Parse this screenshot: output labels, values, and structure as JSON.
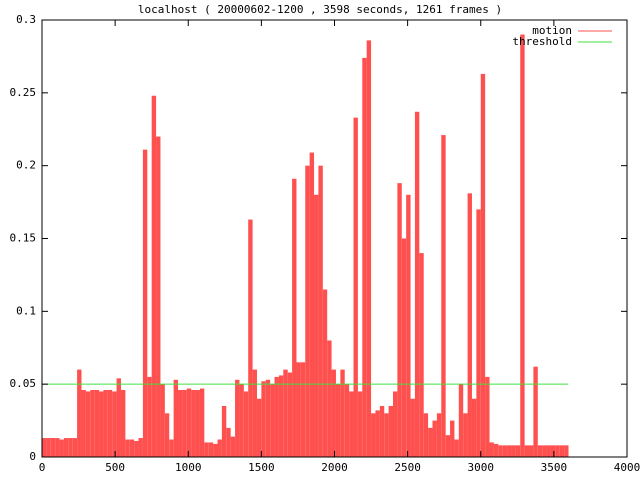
{
  "chart_data": {
    "type": "impulse",
    "title": "localhost ( 20000602-1200 , 3598 seconds, 1261 frames )",
    "xlim": [
      0,
      4000
    ],
    "ylim": [
      0,
      0.3
    ],
    "xticks": [
      0,
      500,
      1000,
      1500,
      2000,
      2500,
      3000,
      3500,
      4000
    ],
    "yticks": [
      0,
      0.05,
      0.1,
      0.15,
      0.2,
      0.25,
      0.3
    ],
    "legend": "top-right",
    "series": [
      {
        "name": "motion",
        "color": "#ff5050",
        "style": "impulses",
        "x": [
          0,
          30,
          60,
          90,
          120,
          150,
          180,
          210,
          240,
          270,
          300,
          330,
          360,
          390,
          420,
          450,
          480,
          510,
          540,
          570,
          600,
          630,
          660,
          690,
          720,
          750,
          780,
          810,
          840,
          870,
          900,
          930,
          960,
          990,
          1020,
          1050,
          1080,
          1110,
          1140,
          1170,
          1200,
          1230,
          1260,
          1290,
          1320,
          1350,
          1380,
          1410,
          1440,
          1470,
          1500,
          1530,
          1560,
          1590,
          1620,
          1650,
          1680,
          1710,
          1740,
          1770,
          1800,
          1830,
          1860,
          1890,
          1920,
          1950,
          1980,
          2010,
          2040,
          2070,
          2100,
          2130,
          2160,
          2190,
          2220,
          2250,
          2280,
          2310,
          2340,
          2370,
          2400,
          2430,
          2460,
          2490,
          2520,
          2550,
          2580,
          2610,
          2640,
          2670,
          2700,
          2730,
          2760,
          2790,
          2820,
          2850,
          2880,
          2910,
          2940,
          2970,
          3000,
          3030,
          3060,
          3090,
          3120,
          3150,
          3180,
          3210,
          3240,
          3270,
          3300,
          3330,
          3360,
          3390,
          3420,
          3450,
          3480,
          3510,
          3540,
          3570
        ],
        "values": [
          0.013,
          0.013,
          0.013,
          0.013,
          0.012,
          0.013,
          0.013,
          0.013,
          0.06,
          0.046,
          0.045,
          0.046,
          0.046,
          0.045,
          0.046,
          0.046,
          0.045,
          0.054,
          0.046,
          0.012,
          0.012,
          0.011,
          0.013,
          0.211,
          0.055,
          0.248,
          0.22,
          0.05,
          0.03,
          0.012,
          0.053,
          0.046,
          0.046,
          0.047,
          0.046,
          0.046,
          0.047,
          0.01,
          0.01,
          0.009,
          0.012,
          0.035,
          0.02,
          0.014,
          0.053,
          0.05,
          0.045,
          0.163,
          0.06,
          0.04,
          0.052,
          0.053,
          0.05,
          0.055,
          0.056,
          0.06,
          0.058,
          0.191,
          0.065,
          0.065,
          0.2,
          0.209,
          0.18,
          0.2,
          0.115,
          0.08,
          0.06,
          0.05,
          0.06,
          0.05,
          0.045,
          0.233,
          0.045,
          0.274,
          0.286,
          0.03,
          0.032,
          0.035,
          0.03,
          0.035,
          0.045,
          0.188,
          0.15,
          0.18,
          0.04,
          0.237,
          0.14,
          0.03,
          0.02,
          0.025,
          0.03,
          0.221,
          0.015,
          0.025,
          0.012,
          0.05,
          0.03,
          0.181,
          0.04,
          0.17,
          0.263,
          0.055,
          0.01,
          0.009,
          0.008,
          0.008,
          0.008,
          0.008,
          0.008,
          0.29,
          0.008,
          0.008,
          0.062,
          0.008,
          0.008,
          0.008,
          0.008,
          0.008,
          0.008,
          0.008
        ]
      },
      {
        "name": "threshold",
        "color": "#40e040",
        "style": "lines",
        "x": [
          0,
          3598
        ],
        "values": [
          0.05,
          0.05
        ]
      }
    ]
  }
}
